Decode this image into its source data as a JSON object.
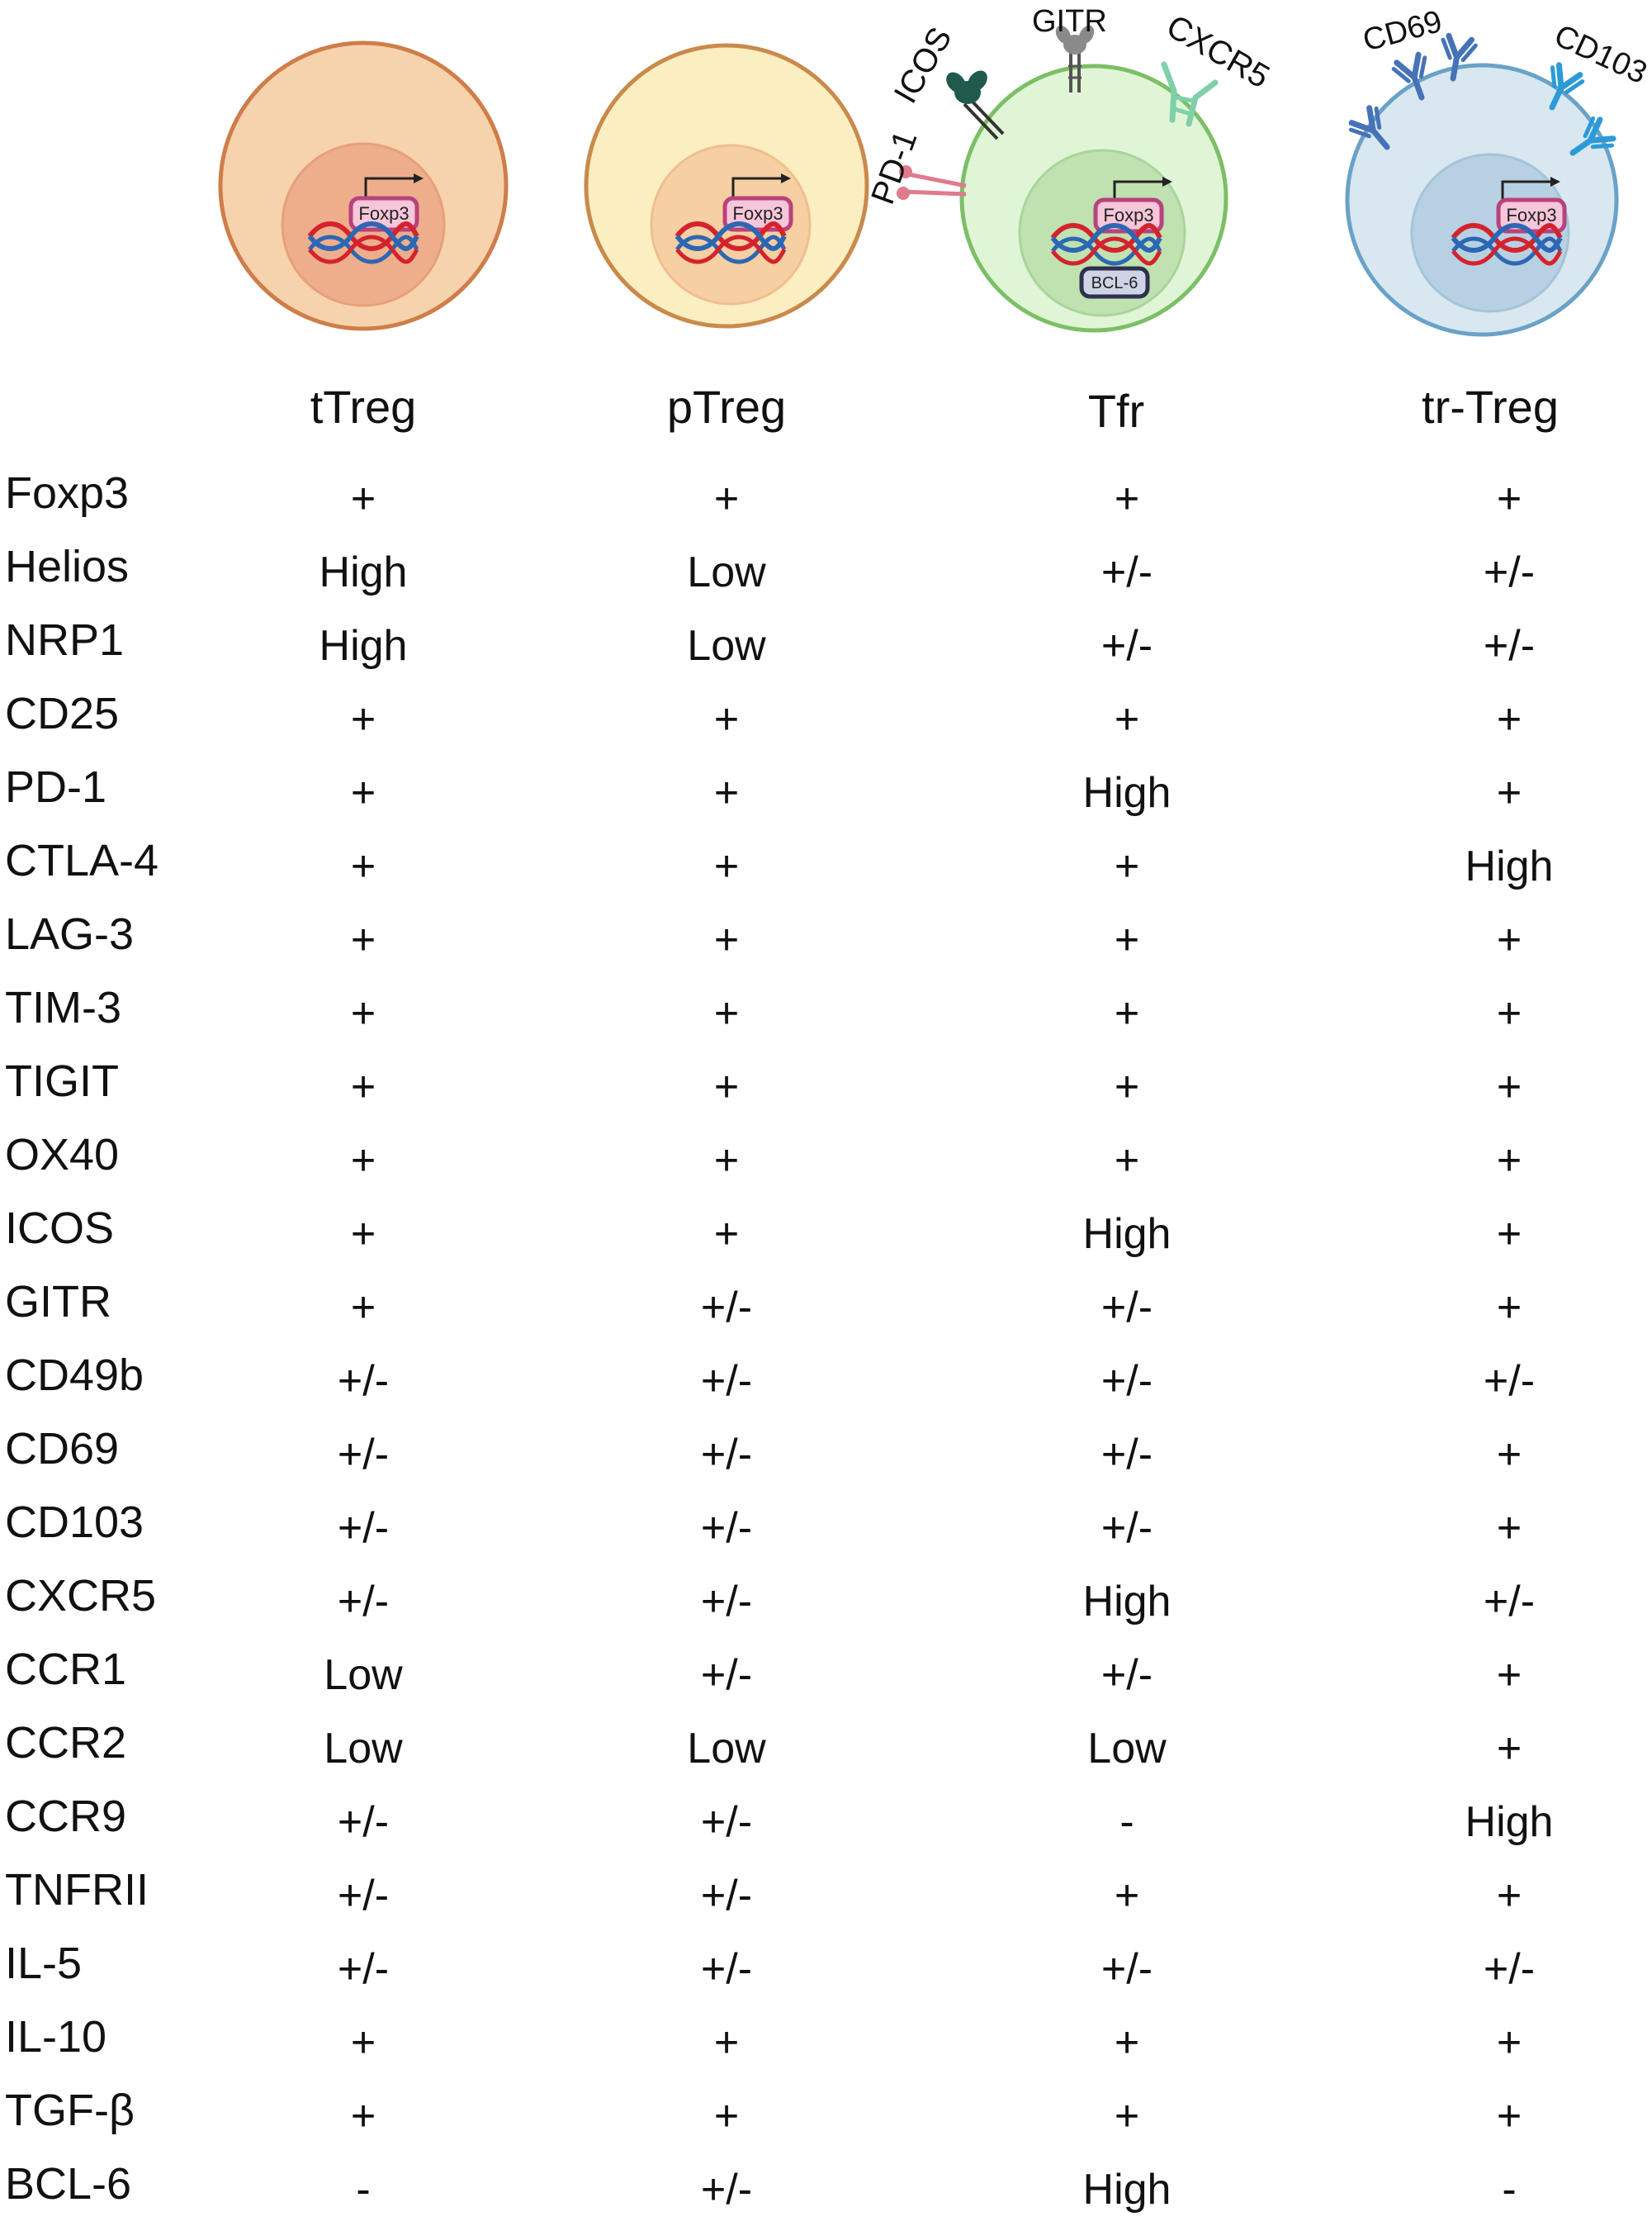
{
  "colors": {
    "ttreg_outer": "#f7d3ad",
    "ttreg_outer_stroke": "#cf7d4a",
    "ttreg_nucleus": "#eeae8c",
    "ptreg_outer": "#fbeec1",
    "ptreg_outer_stroke": "#c98a4b",
    "ptreg_nucleus": "#f6cfa2",
    "tfr_outer": "#e0f5d6",
    "tfr_outer_stroke": "#7cbf66",
    "tfr_nucleus": "#bfe2b0",
    "trtreg_outer": "#d8e7f0",
    "trtreg_outer_stroke": "#6aa2c7",
    "trtreg_nucleus": "#b7d1e2",
    "foxp3_box_fill": "#f6c6d9",
    "foxp3_box_stroke": "#b8437c",
    "dna_red": "#d4232d",
    "dna_blue": "#2d67b4",
    "pd1_color": "#e07a8d",
    "icos_color": "#1f5a4d",
    "gitr_color": "#8a8a8a",
    "cxcr5_color": "#7fd0a9",
    "cd69_color": "#4673b8",
    "cd103_color": "#2a9bd8"
  },
  "diagram": {
    "foxp3_label": "Foxp3",
    "bcl6_label": "BCL-6",
    "receptor_labels": {
      "pd1": "PD-1",
      "icos": "ICOS",
      "gitr": "GITR",
      "cxcr5": "CXCR5",
      "cd69": "CD69",
      "cd103": "CD103"
    }
  },
  "table": {
    "columns": [
      "tTreg",
      "pTreg",
      "Tfr",
      "tr-Treg"
    ],
    "rows": [
      {
        "marker": "Foxp3",
        "values": [
          "+",
          "+",
          "+",
          "+"
        ]
      },
      {
        "marker": "Helios",
        "values": [
          "High",
          "Low",
          "+/-",
          "+/-"
        ]
      },
      {
        "marker": "NRP1",
        "values": [
          "High",
          "Low",
          "+/-",
          "+/-"
        ]
      },
      {
        "marker": "CD25",
        "values": [
          "+",
          "+",
          "+",
          "+"
        ]
      },
      {
        "marker": "PD-1",
        "values": [
          "+",
          "+",
          "High",
          "+"
        ]
      },
      {
        "marker": "CTLA-4",
        "values": [
          "+",
          "+",
          "+",
          "High"
        ]
      },
      {
        "marker": "LAG-3",
        "values": [
          "+",
          "+",
          "+",
          "+"
        ]
      },
      {
        "marker": "TIM-3",
        "values": [
          "+",
          "+",
          "+",
          "+"
        ]
      },
      {
        "marker": "TIGIT",
        "values": [
          "+",
          "+",
          "+",
          "+"
        ]
      },
      {
        "marker": "OX40",
        "values": [
          "+",
          "+",
          "+",
          "+"
        ]
      },
      {
        "marker": "ICOS",
        "values": [
          "+",
          "+",
          "High",
          "+"
        ]
      },
      {
        "marker": "GITR",
        "values": [
          "+",
          "+/-",
          "+/-",
          "+"
        ]
      },
      {
        "marker": "CD49b",
        "values": [
          "+/-",
          "+/-",
          "+/-",
          "+/-"
        ]
      },
      {
        "marker": "CD69",
        "values": [
          "+/-",
          "+/-",
          "+/-",
          "+"
        ]
      },
      {
        "marker": "CD103",
        "values": [
          "+/-",
          "+/-",
          "+/-",
          "+"
        ]
      },
      {
        "marker": "CXCR5",
        "values": [
          "+/-",
          "+/-",
          "High",
          "+/-"
        ]
      },
      {
        "marker": "CCR1",
        "values": [
          "Low",
          "+/-",
          "+/-",
          "+"
        ]
      },
      {
        "marker": "CCR2",
        "values": [
          "Low",
          "Low",
          "Low",
          "+"
        ]
      },
      {
        "marker": "CCR9",
        "values": [
          "+/-",
          "+/-",
          "-",
          "High"
        ]
      },
      {
        "marker": "TNFRII",
        "values": [
          "+/-",
          "+/-",
          "+",
          "+"
        ]
      },
      {
        "marker": "IL-5",
        "values": [
          "+/-",
          "+/-",
          "+/-",
          "+/-"
        ]
      },
      {
        "marker": "IL-10",
        "values": [
          "+",
          "+",
          "+",
          "+"
        ]
      },
      {
        "marker": "TGF-β",
        "values": [
          "+",
          "+",
          "+",
          "+"
        ]
      },
      {
        "marker": "BCL-6",
        "values": [
          "-",
          "+/-",
          "High",
          "-"
        ]
      }
    ]
  }
}
